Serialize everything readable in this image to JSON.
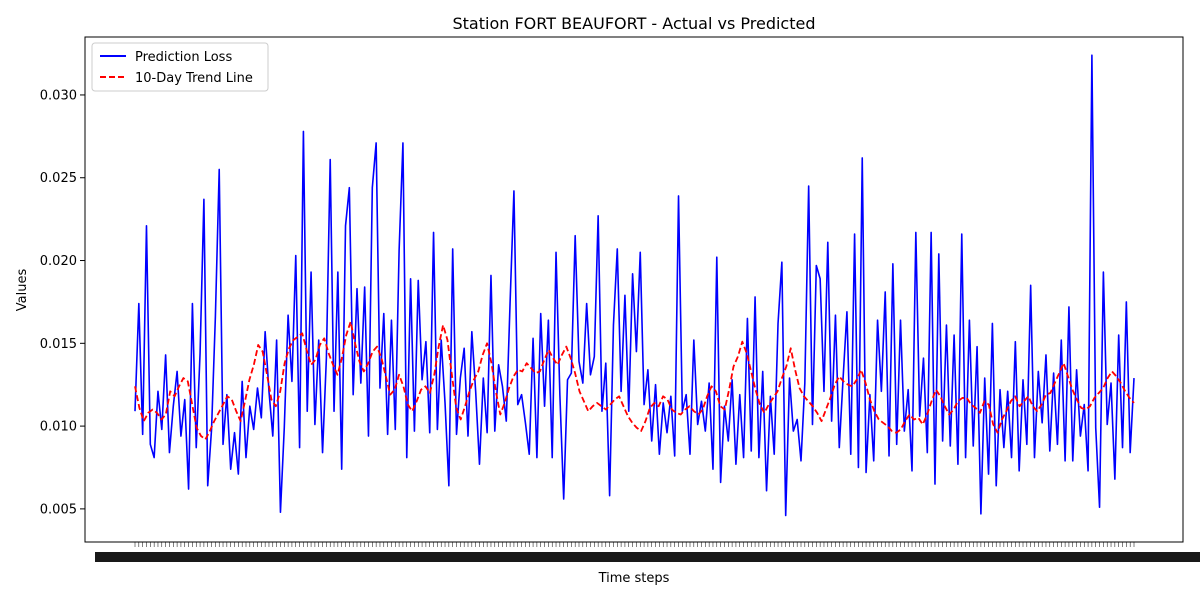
{
  "chart_data": {
    "type": "line",
    "title": "Station FORT BEAUFORT - Actual vs Predicted",
    "xlabel": "Time steps",
    "ylabel": "Values",
    "ylim": [
      0.003,
      0.0335
    ],
    "yticks": [
      0.005,
      0.01,
      0.015,
      0.02,
      0.025,
      0.03
    ],
    "ytick_labels": [
      "0.005",
      "0.010",
      "0.015",
      "0.020",
      "0.025",
      "0.030"
    ],
    "xtick_labels_note": "dense overlapping date labels (illegible)",
    "grid": false,
    "legend": {
      "position": "top-left",
      "entries": [
        "Prediction Loss",
        "10-Day Trend Line"
      ]
    },
    "colors": {
      "actual": "#0000ff",
      "trend": "#ff0000"
    },
    "series": [
      {
        "name": "Prediction Loss",
        "style": "solid",
        "values": [
          0.0109,
          0.0174,
          0.0095,
          0.0221,
          0.0089,
          0.0081,
          0.0121,
          0.0098,
          0.0143,
          0.0084,
          0.0112,
          0.0133,
          0.0094,
          0.0116,
          0.0062,
          0.0174,
          0.0087,
          0.0144,
          0.0237,
          0.0064,
          0.0098,
          0.0166,
          0.0255,
          0.0089,
          0.0119,
          0.0074,
          0.0096,
          0.0071,
          0.0127,
          0.0081,
          0.0112,
          0.0098,
          0.0123,
          0.0105,
          0.0157,
          0.0121,
          0.0094,
          0.0152,
          0.0048,
          0.0099,
          0.0167,
          0.0127,
          0.0203,
          0.0087,
          0.0278,
          0.0109,
          0.0193,
          0.0101,
          0.0152,
          0.0084,
          0.0141,
          0.0261,
          0.0109,
          0.0193,
          0.0074,
          0.0221,
          0.0244,
          0.0119,
          0.0183,
          0.0126,
          0.0184,
          0.0094,
          0.0244,
          0.0271,
          0.0123,
          0.0168,
          0.0095,
          0.0164,
          0.0098,
          0.0206,
          0.0271,
          0.0081,
          0.0189,
          0.0097,
          0.0188,
          0.0128,
          0.0151,
          0.0096,
          0.0217,
          0.0098,
          0.0152,
          0.0114,
          0.0064,
          0.0207,
          0.0095,
          0.0129,
          0.0147,
          0.0094,
          0.0157,
          0.0121,
          0.0077,
          0.0129,
          0.0096,
          0.0191,
          0.0097,
          0.0137,
          0.0124,
          0.0103,
          0.0175,
          0.0242,
          0.0113,
          0.0119,
          0.0102,
          0.0083,
          0.0153,
          0.0081,
          0.0168,
          0.0112,
          0.0164,
          0.0081,
          0.0205,
          0.0119,
          0.0056,
          0.0128,
          0.0132,
          0.0215,
          0.0139,
          0.0126,
          0.0174,
          0.0131,
          0.0142,
          0.0227,
          0.0109,
          0.0138,
          0.0058,
          0.0161,
          0.0207,
          0.0121,
          0.0179,
          0.0109,
          0.0192,
          0.0145,
          0.0205,
          0.0113,
          0.0134,
          0.0091,
          0.0125,
          0.0083,
          0.0114,
          0.0096,
          0.0118,
          0.0082,
          0.0239,
          0.0109,
          0.0119,
          0.0083,
          0.0152,
          0.0101,
          0.0115,
          0.0097,
          0.0126,
          0.0074,
          0.0202,
          0.0066,
          0.0112,
          0.0091,
          0.0128,
          0.0077,
          0.0119,
          0.0081,
          0.0165,
          0.0085,
          0.0178,
          0.0081,
          0.0133,
          0.0061,
          0.0118,
          0.0083,
          0.0162,
          0.0199,
          0.0046,
          0.0129,
          0.0097,
          0.0104,
          0.0079,
          0.0126,
          0.0245,
          0.0101,
          0.0197,
          0.0189,
          0.0121,
          0.0211,
          0.0103,
          0.0167,
          0.0087,
          0.0129,
          0.0169,
          0.0083,
          0.0216,
          0.0075,
          0.0262,
          0.0072,
          0.0119,
          0.0079,
          0.0164,
          0.0121,
          0.0181,
          0.0082,
          0.0198,
          0.0089,
          0.0164,
          0.0097,
          0.0122,
          0.0073,
          0.0217,
          0.0106,
          0.0141,
          0.0084,
          0.0217,
          0.0065,
          0.0204,
          0.0091,
          0.0161,
          0.0088,
          0.0155,
          0.0077,
          0.0216,
          0.0081,
          0.0164,
          0.0088,
          0.0148,
          0.0047,
          0.0129,
          0.0071,
          0.0162,
          0.0064,
          0.0122,
          0.0087,
          0.0121,
          0.0081,
          0.0151,
          0.0073,
          0.0128,
          0.0089,
          0.0185,
          0.0081,
          0.0133,
          0.0102,
          0.0143,
          0.0085,
          0.0132,
          0.0089,
          0.0152,
          0.0079,
          0.0172,
          0.0079,
          0.0134,
          0.0094,
          0.0113,
          0.0073,
          0.0324,
          0.0099,
          0.0051,
          0.0193,
          0.0101,
          0.0126,
          0.0068,
          0.0155,
          0.0087,
          0.0175,
          0.0084,
          0.0129
        ]
      },
      {
        "name": "10-Day Trend Line",
        "style": "dashed",
        "values": [
          0.0124,
          0.0111,
          0.0103,
          0.0108,
          0.011,
          0.0108,
          0.0104,
          0.0107,
          0.0121,
          0.0118,
          0.0124,
          0.0129,
          0.0127,
          0.0113,
          0.0099,
          0.0094,
          0.0092,
          0.0097,
          0.0103,
          0.0108,
          0.0113,
          0.0118,
          0.0116,
          0.0109,
          0.0103,
          0.0115,
          0.0128,
          0.0137,
          0.0149,
          0.0145,
          0.0131,
          0.0116,
          0.0112,
          0.0121,
          0.0138,
          0.0147,
          0.0152,
          0.0154,
          0.0156,
          0.0146,
          0.0137,
          0.014,
          0.0149,
          0.0153,
          0.0144,
          0.0137,
          0.0131,
          0.0141,
          0.0155,
          0.0163,
          0.015,
          0.0139,
          0.0133,
          0.0138,
          0.0145,
          0.0148,
          0.0141,
          0.013,
          0.0119,
          0.0122,
          0.0131,
          0.0124,
          0.0113,
          0.0109,
          0.0115,
          0.0122,
          0.0124,
          0.012,
          0.0131,
          0.0148,
          0.0161,
          0.0152,
          0.0131,
          0.0111,
          0.0104,
          0.0112,
          0.0121,
          0.0128,
          0.0133,
          0.0143,
          0.015,
          0.0138,
          0.0121,
          0.0107,
          0.0114,
          0.0123,
          0.013,
          0.0134,
          0.0133,
          0.0138,
          0.0135,
          0.0132,
          0.0133,
          0.014,
          0.0146,
          0.0141,
          0.0137,
          0.0143,
          0.0148,
          0.0141,
          0.0132,
          0.0121,
          0.0115,
          0.0109,
          0.0112,
          0.0114,
          0.0112,
          0.011,
          0.0113,
          0.0116,
          0.0118,
          0.0112,
          0.0106,
          0.0102,
          0.0099,
          0.0097,
          0.0103,
          0.0111,
          0.0114,
          0.0112,
          0.0118,
          0.0116,
          0.011,
          0.0108,
          0.0107,
          0.011,
          0.0112,
          0.0109,
          0.0107,
          0.011,
          0.0118,
          0.0124,
          0.0121,
          0.0112,
          0.011,
          0.0122,
          0.0136,
          0.0142,
          0.0151,
          0.0144,
          0.0133,
          0.0122,
          0.0113,
          0.0108,
          0.0113,
          0.0117,
          0.0121,
          0.0129,
          0.0136,
          0.0147,
          0.0134,
          0.0123,
          0.0118,
          0.0115,
          0.0112,
          0.0108,
          0.0103,
          0.011,
          0.0117,
          0.0125,
          0.013,
          0.0127,
          0.0125,
          0.0124,
          0.0128,
          0.0134,
          0.0126,
          0.0116,
          0.0109,
          0.0104,
          0.0102,
          0.01,
          0.0097,
          0.0096,
          0.0098,
          0.0103,
          0.0107,
          0.0104,
          0.0105,
          0.0101,
          0.0107,
          0.0115,
          0.0122,
          0.0118,
          0.0112,
          0.0107,
          0.011,
          0.0115,
          0.0117,
          0.0117,
          0.0113,
          0.0111,
          0.0108,
          0.0115,
          0.0113,
          0.0101,
          0.0096,
          0.0104,
          0.0109,
          0.0115,
          0.0118,
          0.0112,
          0.0115,
          0.0118,
          0.0112,
          0.0109,
          0.0113,
          0.0119,
          0.012,
          0.0126,
          0.0132,
          0.0138,
          0.013,
          0.0122,
          0.0116,
          0.0111,
          0.011,
          0.0112,
          0.0117,
          0.012,
          0.0123,
          0.0129,
          0.0133,
          0.013,
          0.0126,
          0.0121,
          0.0117,
          0.0114
        ]
      }
    ]
  }
}
